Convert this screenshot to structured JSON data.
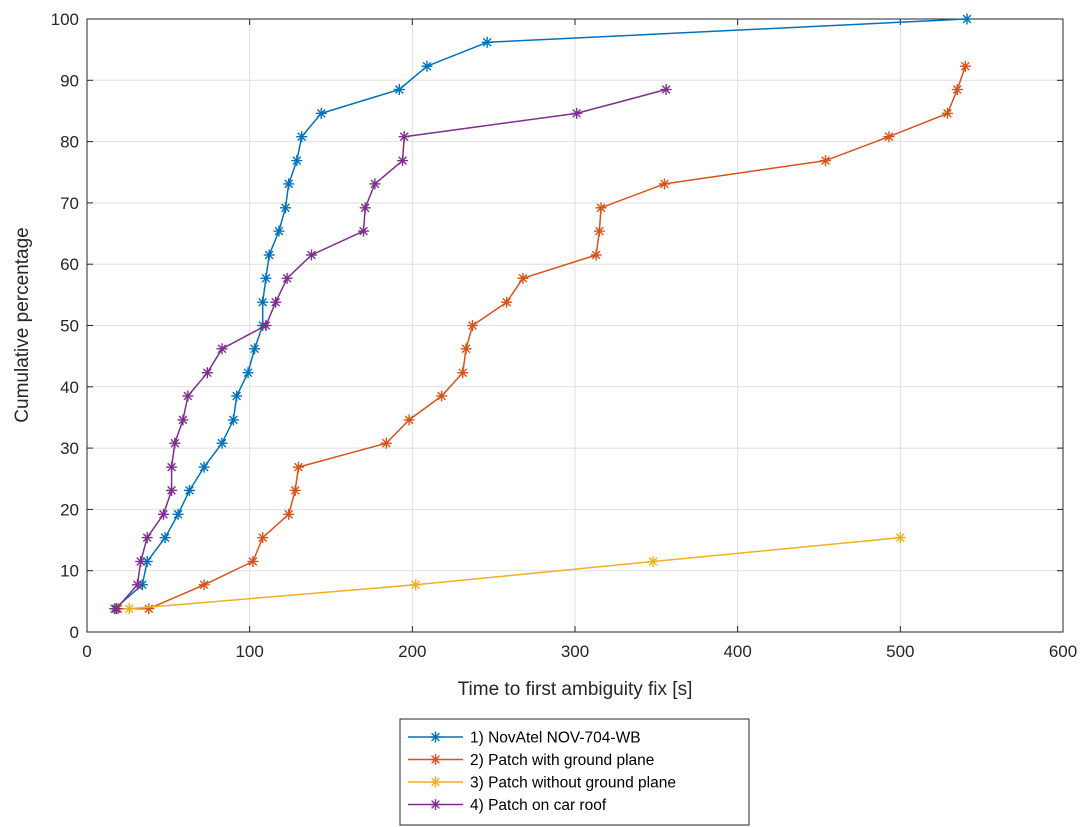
{
  "chart_data": {
    "type": "line",
    "title": "",
    "xlabel": "Time to first ambiguity fix [s]",
    "ylabel": "Cumulative percentage",
    "xlim": [
      0,
      600
    ],
    "ylim": [
      0,
      100
    ],
    "x_ticks": [
      "0",
      "100",
      "200",
      "300",
      "400",
      "500",
      "600"
    ],
    "y_ticks": [
      "0",
      "10",
      "20",
      "30",
      "40",
      "50",
      "60",
      "70",
      "80",
      "90",
      "100"
    ],
    "grid": true,
    "legend_position": "bottom-center, outside plot",
    "marker": "asterisk",
    "series": [
      {
        "name": "1) NovAtel NOV-704-WB",
        "color": "#0072BD",
        "points": [
          [
            17,
            3.8
          ],
          [
            34,
            7.7
          ],
          [
            37,
            11.5
          ],
          [
            48,
            15.4
          ],
          [
            56,
            19.2
          ],
          [
            63,
            23.1
          ],
          [
            72,
            26.9
          ],
          [
            83,
            30.8
          ],
          [
            90,
            34.6
          ],
          [
            92,
            38.5
          ],
          [
            99,
            42.3
          ],
          [
            103,
            46.2
          ],
          [
            108,
            50
          ],
          [
            108,
            53.8
          ],
          [
            110,
            57.7
          ],
          [
            112,
            61.5
          ],
          [
            118,
            65.4
          ],
          [
            122,
            69.2
          ],
          [
            124,
            73.1
          ],
          [
            129,
            76.9
          ],
          [
            132,
            80.8
          ],
          [
            144,
            84.6
          ],
          [
            192,
            88.5
          ],
          [
            209,
            92.3
          ],
          [
            246,
            96.2
          ],
          [
            541,
            100
          ]
        ]
      },
      {
        "name": "2) Patch with ground plane",
        "color": "#D95319",
        "points": [
          [
            19,
            3.8
          ],
          [
            38,
            3.8
          ],
          [
            72,
            7.7
          ],
          [
            102,
            11.5
          ],
          [
            108,
            15.4
          ],
          [
            124,
            19.2
          ],
          [
            128,
            23.1
          ],
          [
            130,
            26.9
          ],
          [
            184,
            30.8
          ],
          [
            198,
            34.6
          ],
          [
            218,
            38.5
          ],
          [
            231,
            42.3
          ],
          [
            233,
            46.2
          ],
          [
            237,
            50
          ],
          [
            258,
            53.8
          ],
          [
            268,
            57.7
          ],
          [
            313,
            61.5
          ],
          [
            315,
            65.4
          ],
          [
            316,
            69.2
          ],
          [
            355,
            73.1
          ],
          [
            454,
            76.9
          ],
          [
            493,
            80.8
          ],
          [
            529,
            84.6
          ],
          [
            535,
            88.5
          ],
          [
            540,
            92.3
          ]
        ]
      },
      {
        "name": "3) Patch without ground plane",
        "color": "#EDB120",
        "points": [
          [
            26,
            3.8
          ],
          [
            202,
            7.7
          ],
          [
            348,
            11.5
          ],
          [
            500,
            15.4
          ]
        ]
      },
      {
        "name": "4) Patch on car roof",
        "color": "#7E2F8E",
        "points": [
          [
            18,
            3.8
          ],
          [
            31,
            7.7
          ],
          [
            33,
            11.5
          ],
          [
            37,
            15.4
          ],
          [
            47,
            19.2
          ],
          [
            52,
            23.1
          ],
          [
            52,
            26.9
          ],
          [
            54,
            30.8
          ],
          [
            59,
            34.6
          ],
          [
            62,
            38.5
          ],
          [
            74,
            42.3
          ],
          [
            83,
            46.2
          ],
          [
            110,
            50
          ],
          [
            116,
            53.8
          ],
          [
            123,
            57.7
          ],
          [
            138,
            61.5
          ],
          [
            170,
            65.4
          ],
          [
            171,
            69.2
          ],
          [
            177,
            73.1
          ],
          [
            194,
            76.9
          ],
          [
            195,
            80.8
          ],
          [
            301,
            84.6
          ],
          [
            356,
            88.5
          ]
        ]
      }
    ]
  }
}
